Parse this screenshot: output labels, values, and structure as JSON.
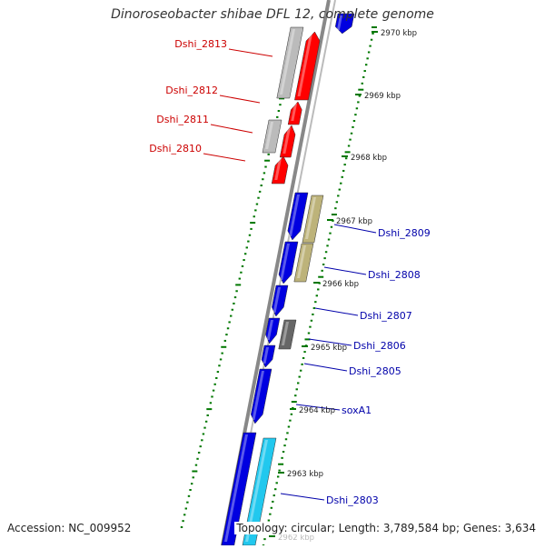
{
  "title": "Dinoroseobacter shibae DFL 12, complete genome",
  "footer": {
    "accession": "Accession: NC_009952",
    "summary": "Topology: circular; Length: 3,789,584 bp; Genes: 3,634"
  },
  "colors": {
    "red_gene": "#ff0000",
    "blue_gene": "#0000e0",
    "cyan_gene": "#22c8ee",
    "gray_gene": "#bbbbbb",
    "dark_gene": "#666666",
    "olive_gene": "#bdb37a",
    "red_label": "#cc0000",
    "blue_label": "#0000aa",
    "tick": "#007700"
  },
  "kbp_labels": [
    "2970 kbp",
    "2969 kbp",
    "2968 kbp",
    "2967 kbp",
    "2966 kbp",
    "2965 kbp",
    "2964 kbp",
    "2963 kbp",
    "2962 kbp"
  ],
  "red_genes": [
    "Dshi_2813",
    "Dshi_2812",
    "Dshi_2811",
    "Dshi_2810"
  ],
  "blue_genes": [
    "Dshi_2809",
    "Dshi_2808",
    "Dshi_2807",
    "Dshi_2806",
    "Dshi_2805",
    "soxA1",
    "Dshi_2803"
  ]
}
